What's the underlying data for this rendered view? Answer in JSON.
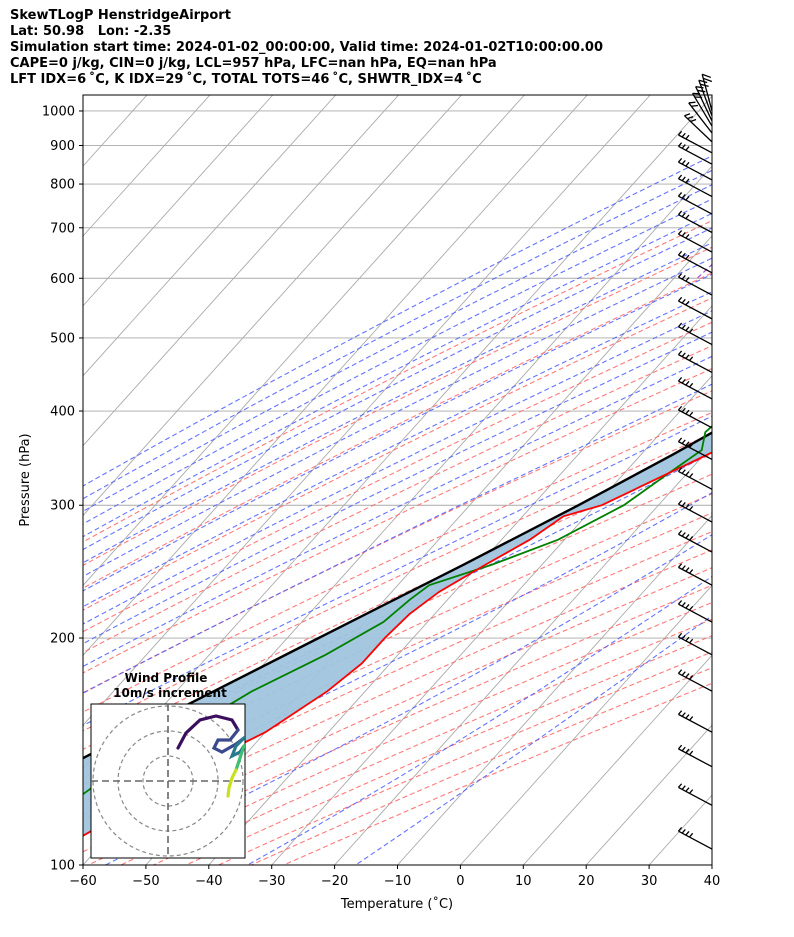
{
  "header": {
    "line1": "SkewTLogP HenstridgeAirport",
    "line2": "Lat: 50.98   Lon: -2.35",
    "line3": "Simulation start time: 2024-01-02_00:00:00, Valid time: 2024-01-02T10:00:00.00",
    "line4": "CAPE=0 j/kg, CIN=0 j/kg, LCL=957 hPa, LFC=nan hPa, EQ=nan hPa",
    "line5": "LFT IDX=6 ˚C, K IDX=29 ˚C, TOTAL TOTS=46 ˚C, SHWTR_IDX=4 ˚C"
  },
  "chart_data": {
    "type": "skewt-logp",
    "xlabel": "Temperature (˚C)",
    "ylabel": "Pressure (hPa)",
    "xlim": [
      -60,
      40
    ],
    "ylim": [
      1050,
      100
    ],
    "x_ticks": [
      -60,
      -50,
      -40,
      -30,
      -20,
      -10,
      0,
      10,
      20,
      30,
      40
    ],
    "y_ticks": [
      1000,
      900,
      800,
      700,
      600,
      500,
      400,
      300,
      200,
      100
    ],
    "grid": true,
    "colors": {
      "temperature": "#ff0000",
      "dewpoint": "#008000",
      "parcel": "#000000",
      "cape_fill": "#a0c4de",
      "dry_adiabat": "#ff6b6b",
      "moist_adiabat": "#4a5cff",
      "mixing_ratio": "#a040d0",
      "isotherm": "#aaaaaa"
    },
    "temperature": [
      [
        1000,
        13.0
      ],
      [
        950,
        11.5
      ],
      [
        900,
        10.5
      ],
      [
        850,
        9.0
      ],
      [
        800,
        7.5
      ],
      [
        750,
        6.0
      ],
      [
        700,
        4.8
      ],
      [
        650,
        3.5
      ],
      [
        600,
        2.0
      ],
      [
        550,
        0.0
      ],
      [
        500,
        -3.5
      ],
      [
        450,
        -7.5
      ],
      [
        420,
        -9.5
      ],
      [
        400,
        -11.5
      ],
      [
        350,
        -19.5
      ],
      [
        300,
        -29.0
      ],
      [
        290,
        -33.5
      ],
      [
        270,
        -35.5
      ],
      [
        250,
        -39.0
      ],
      [
        230,
        -42.5
      ],
      [
        215,
        -44.0
      ],
      [
        200,
        -44.5
      ],
      [
        185,
        -44.5
      ],
      [
        170,
        -46.0
      ],
      [
        150,
        -50.0
      ],
      [
        140,
        -54.0
      ],
      [
        125,
        -58.5
      ],
      [
        115,
        -62.0
      ],
      [
        100,
        -68.0
      ]
    ],
    "dewpoint": [
      [
        1000,
        12.5
      ],
      [
        950,
        11.0
      ],
      [
        900,
        9.5
      ],
      [
        850,
        8.0
      ],
      [
        800,
        6.5
      ],
      [
        750,
        5.0
      ],
      [
        700,
        3.8
      ],
      [
        650,
        2.5
      ],
      [
        600,
        1.0
      ],
      [
        550,
        -1.0
      ],
      [
        500,
        -5.0
      ],
      [
        450,
        -9.5
      ],
      [
        425,
        -15.0
      ],
      [
        410,
        -22.0
      ],
      [
        375,
        -23.0
      ],
      [
        355,
        -21.0
      ],
      [
        330,
        -23.0
      ],
      [
        300,
        -25.5
      ],
      [
        270,
        -31.0
      ],
      [
        250,
        -38.0
      ],
      [
        235,
        -45.0
      ],
      [
        225,
        -46.0
      ],
      [
        210,
        -47.0
      ],
      [
        190,
        -51.5
      ],
      [
        170,
        -58.0
      ],
      [
        150,
        -63.0
      ],
      [
        130,
        -69.0
      ],
      [
        115,
        -72.0
      ],
      [
        100,
        -76.0
      ]
    ],
    "parcel": [
      [
        965,
        12.6
      ],
      [
        950,
        11.2
      ],
      [
        900,
        9.8
      ],
      [
        850,
        8.2
      ],
      [
        800,
        6.4
      ],
      [
        750,
        4.4
      ],
      [
        700,
        2.2
      ],
      [
        650,
        -0.2
      ],
      [
        600,
        -2.9
      ],
      [
        550,
        -6.0
      ],
      [
        500,
        -9.6
      ],
      [
        450,
        -13.8
      ],
      [
        400,
        -18.8
      ],
      [
        350,
        -25.0
      ],
      [
        300,
        -32.7
      ],
      [
        250,
        -42.5
      ],
      [
        200,
        -55.0
      ],
      [
        150,
        -71.0
      ],
      [
        100,
        -93.0
      ]
    ],
    "wind_barb_pressures": [
      1000,
      985,
      970,
      955,
      935,
      910,
      880,
      850,
      810,
      770,
      730,
      690,
      650,
      610,
      570,
      530,
      490,
      450,
      415,
      380,
      345,
      315,
      285,
      260,
      235,
      210,
      190,
      170,
      150,
      135,
      120,
      105
    ],
    "inset": {
      "title_line1": "Wind Profile",
      "title_line2": "10m/s increment"
    }
  }
}
